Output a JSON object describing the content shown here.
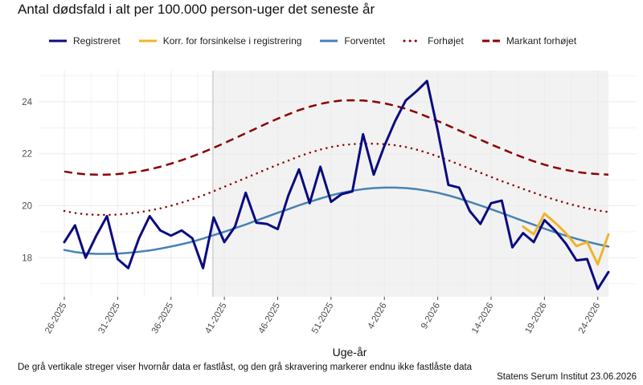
{
  "page": {
    "title": "Antal dødsfald i alt per 100.000 person-uger det seneste år",
    "caption": "De grå vertikale streger viser hvornår data er fastlåst, og den grå skravering markerer endnu ikke fastlåste data",
    "source": "Statens Serum Institut  23.06.2026"
  },
  "colors": {
    "registered": "#0b0b80",
    "corrected": "#f0b429",
    "expected": "#4682b4",
    "elevated": "#8b0000",
    "markedly_elevated": "#8b0000",
    "shade": "#f2f2f2",
    "grid": "#ebebeb",
    "freeze_line": "#d9d9d9"
  },
  "legend": [
    {
      "key": "registered",
      "label": "Registreret",
      "style": "solid"
    },
    {
      "key": "corrected",
      "label": "Korr. for forsinkelse i registrering",
      "style": "solid"
    },
    {
      "key": "expected",
      "label": "Forventet",
      "style": "solid"
    },
    {
      "key": "elevated",
      "label": "Forhøjet",
      "style": "dotted"
    },
    {
      "key": "markedly_elevated",
      "label": "Markant forhøjet",
      "style": "dashed"
    }
  ],
  "chart_data": {
    "type": "line",
    "title": "Antal dødsfald i alt per 100.000 person-uger det seneste år",
    "xlabel": "Uge-år",
    "ylabel": "",
    "ylim": [
      16.5,
      25.2
    ],
    "yticks": [
      18,
      20,
      22,
      24
    ],
    "x": [
      "26-2025",
      "27-2025",
      "28-2025",
      "29-2025",
      "30-2025",
      "31-2025",
      "32-2025",
      "33-2025",
      "34-2025",
      "35-2025",
      "36-2025",
      "37-2025",
      "38-2025",
      "39-2025",
      "40-2025",
      "41-2025",
      "42-2025",
      "43-2025",
      "44-2025",
      "45-2025",
      "46-2025",
      "47-2025",
      "48-2025",
      "49-2025",
      "50-2025",
      "51-2025",
      "52-2025",
      "1-2026",
      "2-2026",
      "3-2026",
      "4-2026",
      "5-2026",
      "6-2026",
      "7-2026",
      "8-2026",
      "9-2026",
      "10-2026",
      "11-2026",
      "12-2026",
      "13-2026",
      "14-2026",
      "15-2026",
      "16-2026",
      "17-2026",
      "18-2026",
      "19-2026",
      "20-2026",
      "21-2026",
      "22-2026",
      "23-2026",
      "24-2026",
      "25-2026"
    ],
    "xtick_labels": [
      "26-2025",
      "31-2025",
      "36-2025",
      "41-2025",
      "46-2025",
      "51-2025",
      "4-2026",
      "9-2026",
      "14-2026",
      "19-2026",
      "24-2026"
    ],
    "series": [
      {
        "key": "registered",
        "name": "Registreret",
        "values": [
          18.6,
          19.25,
          18.0,
          18.85,
          19.6,
          17.95,
          17.6,
          18.75,
          19.6,
          19.05,
          18.85,
          19.05,
          18.75,
          17.6,
          19.55,
          18.6,
          19.2,
          20.5,
          19.35,
          19.3,
          19.1,
          20.4,
          21.4,
          20.1,
          21.5,
          20.15,
          20.45,
          20.55,
          22.75,
          21.2,
          22.3,
          23.25,
          24.05,
          24.4,
          24.8,
          22.9,
          20.8,
          20.7,
          19.8,
          19.3,
          20.1,
          20.2,
          18.4,
          18.95,
          18.6,
          19.45,
          19.05,
          18.55,
          17.9,
          17.95,
          16.8,
          17.45
        ]
      },
      {
        "key": "corrected",
        "name": "Korr. for forsinkelse i registrering",
        "values": [
          null,
          null,
          null,
          null,
          null,
          null,
          null,
          null,
          null,
          null,
          null,
          null,
          null,
          null,
          null,
          null,
          null,
          null,
          null,
          null,
          null,
          null,
          null,
          null,
          null,
          null,
          null,
          null,
          null,
          null,
          null,
          null,
          null,
          null,
          null,
          null,
          null,
          null,
          null,
          null,
          null,
          null,
          null,
          19.2,
          18.9,
          19.7,
          19.35,
          18.95,
          18.45,
          18.6,
          17.75,
          18.9
        ]
      },
      {
        "key": "expected",
        "name": "Forventet",
        "values": [
          18.3,
          18.22,
          18.17,
          18.15,
          18.15,
          18.16,
          18.19,
          18.23,
          18.28,
          18.35,
          18.43,
          18.52,
          18.62,
          18.74,
          18.87,
          19.0,
          19.14,
          19.28,
          19.43,
          19.58,
          19.73,
          19.87,
          20.02,
          20.15,
          20.28,
          20.4,
          20.5,
          20.58,
          20.64,
          20.68,
          20.7,
          20.7,
          20.68,
          20.64,
          20.58,
          20.5,
          20.4,
          20.28,
          20.15,
          20.01,
          19.87,
          19.72,
          19.57,
          19.42,
          19.27,
          19.12,
          18.98,
          18.85,
          18.73,
          18.62,
          18.52,
          18.43
        ]
      },
      {
        "key": "elevated",
        "name": "Forhøjet",
        "values": [
          19.8,
          19.72,
          19.67,
          19.65,
          19.65,
          19.66,
          19.7,
          19.75,
          19.82,
          19.9,
          20.0,
          20.12,
          20.25,
          20.4,
          20.56,
          20.73,
          20.9,
          21.07,
          21.24,
          21.41,
          21.58,
          21.74,
          21.9,
          22.04,
          22.16,
          22.26,
          22.33,
          22.37,
          22.39,
          22.39,
          22.37,
          22.33,
          22.26,
          22.16,
          22.04,
          21.9,
          21.75,
          21.59,
          21.43,
          21.27,
          21.11,
          20.95,
          20.8,
          20.65,
          20.5,
          20.36,
          20.23,
          20.11,
          20.0,
          19.9,
          19.82,
          19.76
        ]
      },
      {
        "key": "markedly_elevated",
        "name": "Markant forhøjet",
        "values": [
          21.32,
          21.25,
          21.21,
          21.2,
          21.2,
          21.22,
          21.26,
          21.32,
          21.4,
          21.5,
          21.62,
          21.75,
          21.9,
          22.06,
          22.23,
          22.41,
          22.6,
          22.79,
          22.98,
          23.17,
          23.35,
          23.52,
          23.68,
          23.81,
          23.92,
          24.0,
          24.05,
          24.06,
          24.05,
          24.01,
          23.94,
          23.85,
          23.73,
          23.59,
          23.43,
          23.26,
          23.08,
          22.9,
          22.72,
          22.54,
          22.36,
          22.19,
          22.02,
          21.86,
          21.71,
          21.58,
          21.47,
          21.38,
          21.3,
          21.25,
          21.22,
          21.2
        ]
      }
    ],
    "shaded_from": "40-2025",
    "freeze_line_at": "40-2025",
    "grid": true,
    "legend_position": "top"
  }
}
